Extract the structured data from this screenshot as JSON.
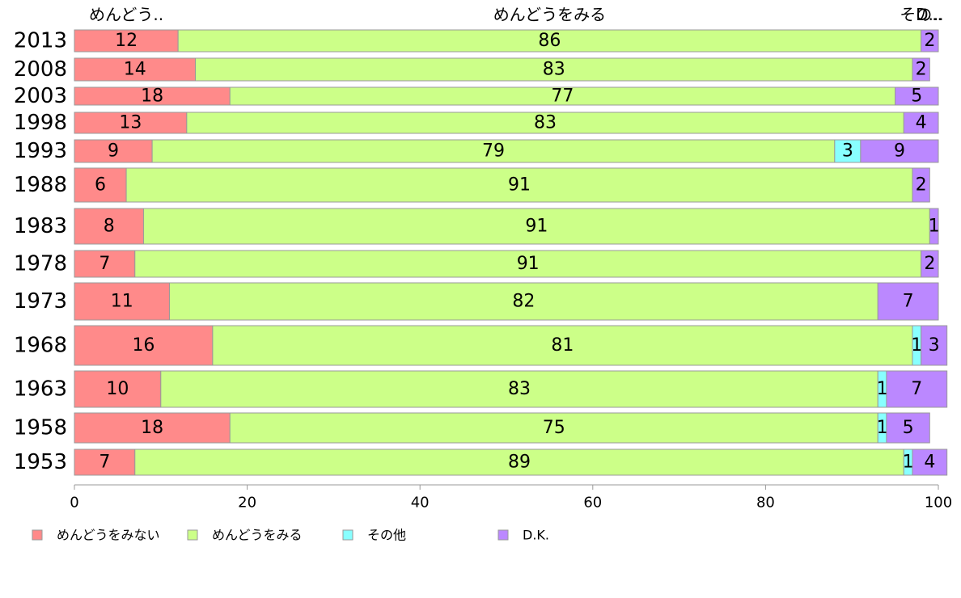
{
  "chart_data": {
    "type": "bar",
    "orientation": "horizontal",
    "stacked": "percent",
    "categories": [
      "2013",
      "2008",
      "2003",
      "1998",
      "1993",
      "1988",
      "1983",
      "1978",
      "1973",
      "1968",
      "1963",
      "1958",
      "1953"
    ],
    "series": [
      {
        "name": "めんどうをみない",
        "color": "#FF8A8A",
        "values": [
          12,
          14,
          18,
          13,
          9,
          6,
          8,
          7,
          11,
          16,
          10,
          18,
          7
        ]
      },
      {
        "name": "めんどうをみる",
        "color": "#CCFF88",
        "values": [
          86,
          83,
          77,
          83,
          79,
          91,
          91,
          91,
          82,
          81,
          83,
          75,
          89
        ]
      },
      {
        "name": "その他",
        "color": "#88FFFF",
        "values": [
          0,
          0,
          0,
          0,
          3,
          0,
          0,
          0,
          0,
          1,
          1,
          1,
          1
        ]
      },
      {
        "name": "D.K.",
        "color": "#BB88FF",
        "values": [
          2,
          2,
          5,
          4,
          9,
          2,
          1,
          2,
          7,
          3,
          7,
          5,
          4
        ]
      }
    ],
    "top_labels": [
      "めんどう..",
      "めんどうをみる",
      "その..",
      "D..."
    ],
    "xlim": [
      0,
      100
    ],
    "x_ticks": [
      "0",
      "20",
      "40",
      "60",
      "80",
      "100"
    ],
    "legend_position": "bottom-left",
    "grid": false
  }
}
